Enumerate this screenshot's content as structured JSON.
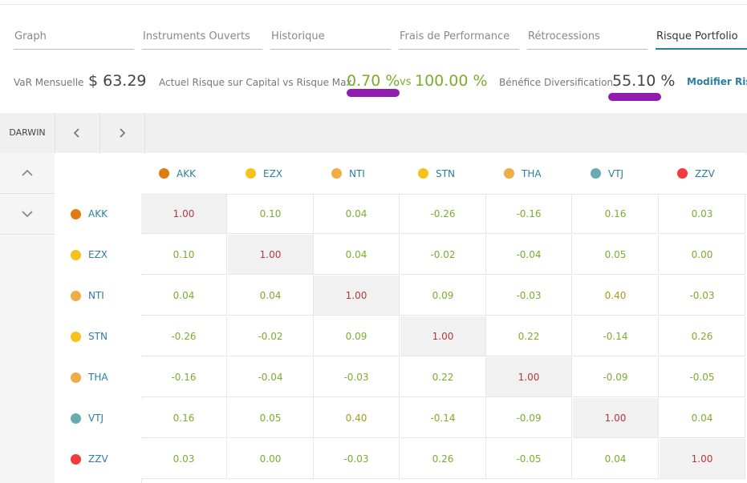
{
  "tabs": [
    {
      "label": "Graph"
    },
    {
      "label": "Instruments Ouverts"
    },
    {
      "label": "Historique"
    },
    {
      "label": "Frais de Performance"
    },
    {
      "label": "Rétrocessions"
    },
    {
      "label": "Risque Portfolio",
      "active": true
    }
  ],
  "stats": {
    "var_label": "VaR Mensuelle",
    "var_value": "$ 63.29",
    "risk_label": "Actuel Risque sur Capital vs Risque Max.",
    "risk_current": "0.70 %",
    "risk_vs": "vs",
    "risk_max": "100.00 %",
    "div_label": "Bénéfice Diversification",
    "div_value": "55.10 %",
    "modify_link": "Modifier Risq"
  },
  "grid": {
    "corner_label": "DARWIN",
    "prev_icon": "chevron-left-icon",
    "next_icon": "chevron-right-icon",
    "up_icon": "chevron-up-icon",
    "down_icon": "chevron-down-icon"
  },
  "darwins": [
    {
      "name": "AKK",
      "color": "#e07b12"
    },
    {
      "name": "EZX",
      "color": "#f5c21b"
    },
    {
      "name": "NTI",
      "color": "#f0ad45"
    },
    {
      "name": "STN",
      "color": "#f5c21b"
    },
    {
      "name": "THA",
      "color": "#f0ad45"
    },
    {
      "name": "VTJ",
      "color": "#6aabb3"
    },
    {
      "name": "ZZV",
      "color": "#f03b3b"
    }
  ],
  "matrix": [
    [
      "1.00",
      "0.10",
      "0.04",
      "-0.26",
      "-0.16",
      "0.16",
      "0.03"
    ],
    [
      "0.10",
      "1.00",
      "0.04",
      "-0.02",
      "-0.04",
      "0.05",
      "0.00"
    ],
    [
      "0.04",
      "0.04",
      "1.00",
      "0.09",
      "-0.03",
      "0.40",
      "-0.03"
    ],
    [
      "-0.26",
      "-0.02",
      "0.09",
      "1.00",
      "0.22",
      "-0.14",
      "0.26"
    ],
    [
      "-0.16",
      "-0.04",
      "-0.03",
      "0.22",
      "1.00",
      "-0.09",
      "-0.05"
    ],
    [
      "0.16",
      "0.05",
      "0.40",
      "-0.14",
      "-0.09",
      "1.00",
      "0.04"
    ],
    [
      "0.03",
      "0.00",
      "-0.03",
      "0.26",
      "-0.05",
      "0.04",
      "1.00"
    ]
  ],
  "colors": {
    "accent": "#2b7ea1",
    "positive": "#7bad2d",
    "diagonal": "#b23a3a",
    "highlight_mark": "#8f1db0"
  }
}
